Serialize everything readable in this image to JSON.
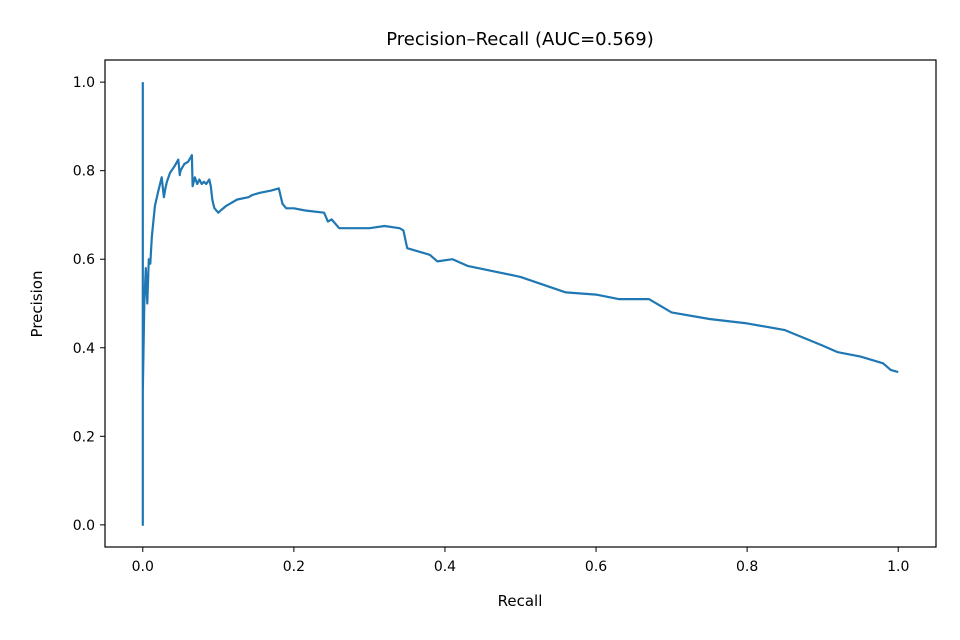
{
  "chart_data": {
    "type": "line",
    "title": "Precision–Recall (AUC=0.569)",
    "xlabel": "Recall",
    "ylabel": "Precision",
    "xlim": [
      -0.05,
      1.05
    ],
    "ylim": [
      -0.05,
      1.05
    ],
    "xticks": [
      0.0,
      0.2,
      0.4,
      0.6,
      0.8,
      1.0
    ],
    "xtick_labels": [
      "0.0",
      "0.2",
      "0.4",
      "0.6",
      "0.8",
      "1.0"
    ],
    "yticks": [
      0.0,
      0.2,
      0.4,
      0.6,
      0.8,
      1.0
    ],
    "ytick_labels": [
      "0.0",
      "0.2",
      "0.4",
      "0.6",
      "0.8",
      "1.0"
    ],
    "grid": false,
    "legend": "none",
    "series": [
      {
        "color": "#1f77b4",
        "x": [
          0.0,
          0.0,
          0.0,
          0.002,
          0.004,
          0.006,
          0.008,
          0.01,
          0.012,
          0.016,
          0.02,
          0.025,
          0.028,
          0.03,
          0.032,
          0.036,
          0.042,
          0.047,
          0.049,
          0.05,
          0.055,
          0.06,
          0.065,
          0.066,
          0.069,
          0.072,
          0.075,
          0.078,
          0.081,
          0.084,
          0.088,
          0.09,
          0.092,
          0.094,
          0.095,
          0.1,
          0.103,
          0.11,
          0.115,
          0.125,
          0.14,
          0.145,
          0.155,
          0.17,
          0.18,
          0.185,
          0.19,
          0.2,
          0.215,
          0.24,
          0.245,
          0.25,
          0.26,
          0.3,
          0.32,
          0.34,
          0.345,
          0.35,
          0.38,
          0.39,
          0.41,
          0.43,
          0.5,
          0.56,
          0.6,
          0.63,
          0.67,
          0.7,
          0.75,
          0.8,
          0.85,
          0.9,
          0.92,
          0.95,
          0.98,
          0.99,
          1.0
        ],
        "y": [
          1.0,
          0.0,
          0.3,
          0.5,
          0.58,
          0.5,
          0.6,
          0.59,
          0.65,
          0.72,
          0.75,
          0.785,
          0.74,
          0.76,
          0.775,
          0.795,
          0.81,
          0.825,
          0.79,
          0.8,
          0.815,
          0.82,
          0.835,
          0.765,
          0.785,
          0.77,
          0.78,
          0.77,
          0.775,
          0.77,
          0.78,
          0.765,
          0.735,
          0.72,
          0.715,
          0.705,
          0.71,
          0.72,
          0.725,
          0.735,
          0.74,
          0.745,
          0.75,
          0.755,
          0.76,
          0.725,
          0.715,
          0.715,
          0.71,
          0.705,
          0.685,
          0.69,
          0.67,
          0.67,
          0.675,
          0.67,
          0.665,
          0.625,
          0.61,
          0.595,
          0.6,
          0.585,
          0.56,
          0.525,
          0.52,
          0.51,
          0.51,
          0.48,
          0.465,
          0.455,
          0.44,
          0.405,
          0.39,
          0.38,
          0.365,
          0.35,
          0.345
        ]
      }
    ]
  }
}
